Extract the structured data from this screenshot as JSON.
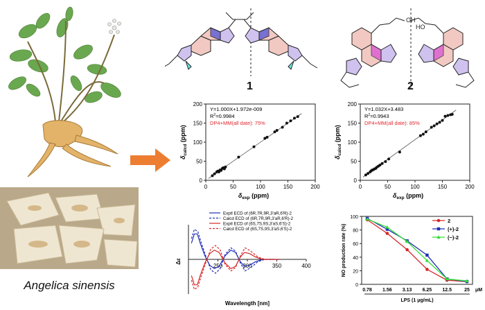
{
  "caption": "Angelica sinensis",
  "colors": {
    "accent_arrow": "#ed7d31",
    "series_blue": "#1f2fb8",
    "series_red": "#d62728",
    "series_green": "#33dd33",
    "annotation_red": "#e0282e"
  },
  "compounds": {
    "label1": "1",
    "label2": "2"
  },
  "chart_data": [
    {
      "type": "scatter",
      "id": "scatter-1",
      "xlabel_main": "δ",
      "xlabel_sub": "exp",
      "xlabel_unit": "(ppm)",
      "ylabel_main": "δ",
      "ylabel_sub": "calcd",
      "ylabel_unit": "(ppm)",
      "xlim": [
        0,
        200
      ],
      "ylim": [
        0,
        200
      ],
      "xticks": [
        "0",
        "50",
        "100",
        "150",
        "200"
      ],
      "yticks": [
        "0",
        "50",
        "100",
        "150",
        "200"
      ],
      "annotation_equation": "Y=1.000X+1.972e-009",
      "annotation_r2_main": "R",
      "annotation_r2_sup": "2",
      "annotation_r2_val": "=0.9984",
      "annotation_dp4": "DP4+MM(all date): 75%",
      "fit": {
        "slope": 1.0,
        "intercept": 0.0
      },
      "points": [
        [
          12,
          12
        ],
        [
          16,
          17
        ],
        [
          20,
          22
        ],
        [
          22,
          24
        ],
        [
          24,
          22
        ],
        [
          26,
          27
        ],
        [
          28,
          26
        ],
        [
          30,
          31
        ],
        [
          32,
          33
        ],
        [
          34,
          30
        ],
        [
          36,
          35
        ],
        [
          60,
          61
        ],
        [
          88,
          88
        ],
        [
          108,
          110
        ],
        [
          112,
          113
        ],
        [
          126,
          127
        ],
        [
          130,
          131
        ],
        [
          140,
          139
        ],
        [
          148,
          150
        ],
        [
          155,
          156
        ],
        [
          162,
          163
        ],
        [
          168,
          167
        ]
      ]
    },
    {
      "type": "scatter",
      "id": "scatter-2",
      "xlabel_main": "δ",
      "xlabel_sub": "exp",
      "xlabel_unit": "(ppm)",
      "ylabel_main": "δ",
      "ylabel_sub": "calcd",
      "ylabel_unit": "(ppm)",
      "xlim": [
        0,
        200
      ],
      "ylim": [
        0,
        200
      ],
      "xticks": [
        "0",
        "50",
        "100",
        "150",
        "200"
      ],
      "yticks": [
        "0",
        "50",
        "100",
        "150",
        "200"
      ],
      "annotation_equation": "Y=1.032X+3.483",
      "annotation_r2_main": "R",
      "annotation_r2_sup": "2",
      "annotation_r2_val": "=0.9943",
      "annotation_dp4": "DP4+MM(all date): 85%",
      "fit": {
        "slope": 1.032,
        "intercept": 3.483
      },
      "points": [
        [
          10,
          14
        ],
        [
          14,
          18
        ],
        [
          18,
          22
        ],
        [
          20,
          25
        ],
        [
          22,
          27
        ],
        [
          24,
          28
        ],
        [
          26,
          30
        ],
        [
          28,
          31
        ],
        [
          30,
          34
        ],
        [
          33,
          37
        ],
        [
          36,
          40
        ],
        [
          40,
          44
        ],
        [
          46,
          49
        ],
        [
          52,
          56
        ],
        [
          72,
          74
        ],
        [
          110,
          117
        ],
        [
          115,
          121
        ],
        [
          120,
          127
        ],
        [
          130,
          139
        ],
        [
          135,
          143
        ],
        [
          140,
          148
        ],
        [
          145,
          152
        ],
        [
          150,
          157
        ],
        [
          155,
          168
        ],
        [
          160,
          170
        ],
        [
          165,
          172
        ],
        [
          168,
          173
        ]
      ]
    },
    {
      "type": "line",
      "id": "ecd",
      "xlabel": "Wavelength [nm]",
      "ylabel": "Δε",
      "xlim": [
        200,
        400
      ],
      "ylim": [
        -30,
        30
      ],
      "xticks": [
        "250",
        "300",
        "350",
        "400"
      ],
      "legend_position": "top",
      "series": [
        {
          "name": "Exptl ECD of (6R,7R,9R,3'aR,6'R)-2",
          "color": "#1f2fb8",
          "dash": false,
          "points": [
            [
              205,
              14
            ],
            [
              210,
              22
            ],
            [
              215,
              22
            ],
            [
              220,
              14
            ],
            [
              228,
              3
            ],
            [
              236,
              -5
            ],
            [
              244,
              -8
            ],
            [
              252,
              -6
            ],
            [
              262,
              3
            ],
            [
              272,
              8
            ],
            [
              280,
              6
            ],
            [
              288,
              -2
            ],
            [
              295,
              -6
            ],
            [
              304,
              -5
            ],
            [
              314,
              -2
            ],
            [
              326,
              0
            ],
            [
              340,
              0
            ],
            [
              355,
              0
            ]
          ]
        },
        {
          "name": "Calcd ECD of (6R,7R,9R,3'aR,6'R)-2",
          "color": "#1f2fb8",
          "dash": true,
          "points": [
            [
              205,
              18
            ],
            [
              210,
              26
            ],
            [
              216,
              24
            ],
            [
              222,
              14
            ],
            [
              230,
              2
            ],
            [
              238,
              -9
            ],
            [
              246,
              -12
            ],
            [
              254,
              -8
            ],
            [
              262,
              4
            ],
            [
              272,
              10
            ],
            [
              280,
              7
            ],
            [
              288,
              -3
            ],
            [
              296,
              -10
            ],
            [
              306,
              -7
            ],
            [
              318,
              -2
            ],
            [
              330,
              0
            ],
            [
              345,
              0
            ]
          ]
        },
        {
          "name": "Exptl ECD of (6S,7S,9S,3'aS,6'S)-2",
          "color": "#d62728",
          "dash": false,
          "points": [
            [
              205,
              -14
            ],
            [
              210,
              -22
            ],
            [
              215,
              -22
            ],
            [
              220,
              -14
            ],
            [
              228,
              -3
            ],
            [
              236,
              5
            ],
            [
              244,
              8
            ],
            [
              252,
              6
            ],
            [
              262,
              -3
            ],
            [
              272,
              -8
            ],
            [
              280,
              -6
            ],
            [
              288,
              2
            ],
            [
              295,
              6
            ],
            [
              304,
              5
            ],
            [
              314,
              2
            ],
            [
              326,
              0
            ],
            [
              340,
              0
            ],
            [
              355,
              0
            ]
          ]
        },
        {
          "name": "Calcd ECD of (6S,7S,9S,3'aS,6'S)-2",
          "color": "#d62728",
          "dash": true,
          "points": [
            [
              205,
              -18
            ],
            [
              210,
              -26
            ],
            [
              216,
              -24
            ],
            [
              222,
              -14
            ],
            [
              230,
              -2
            ],
            [
              238,
              9
            ],
            [
              246,
              12
            ],
            [
              254,
              8
            ],
            [
              262,
              -4
            ],
            [
              272,
              -10
            ],
            [
              280,
              -7
            ],
            [
              288,
              3
            ],
            [
              296,
              10
            ],
            [
              306,
              7
            ],
            [
              318,
              2
            ],
            [
              330,
              0
            ],
            [
              345,
              0
            ]
          ]
        }
      ]
    },
    {
      "type": "line",
      "id": "no-production",
      "ylabel": "NO production rate (%)",
      "xlabel": "LPS (1 μg/mL)",
      "x_unit": "μM",
      "categories": [
        "0.78",
        "1.56",
        "3.13",
        "6.25",
        "12.5",
        "25"
      ],
      "ylim": [
        0,
        100
      ],
      "yticks": [
        "0",
        "20",
        "40",
        "60",
        "80",
        "100"
      ],
      "legend_position": "top-right",
      "series": [
        {
          "name": "2",
          "color": "#d62728",
          "marker": "circle",
          "values": [
            95,
            75,
            51,
            22,
            6,
            4
          ]
        },
        {
          "name": "(+)-2",
          "color": "#1f2fb8",
          "marker": "square",
          "values": [
            97,
            81,
            64,
            43,
            8,
            4
          ]
        },
        {
          "name": "(−)-2",
          "color": "#33dd33",
          "marker": "triangle",
          "values": [
            96,
            84,
            63,
            35,
            8,
            5
          ]
        }
      ]
    }
  ]
}
